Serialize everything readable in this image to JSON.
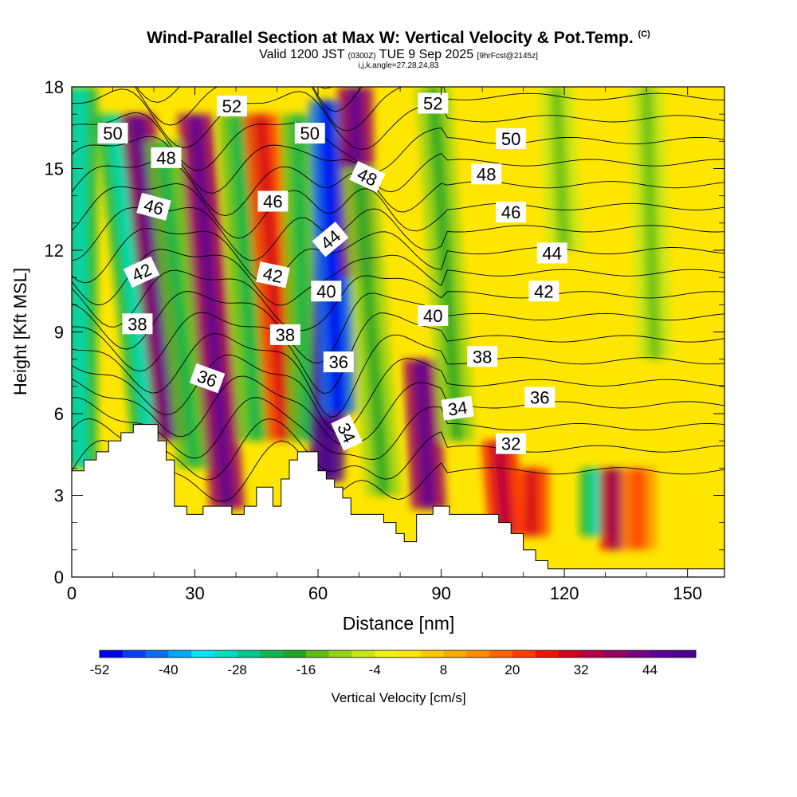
{
  "chart_data": {
    "type": "heatmap",
    "title": "Wind-Parallel Section at Max W: Vertical Velocity & Pot.Temp.",
    "title_tag": "(C)",
    "subtitle_valid": "Valid 1200 JST",
    "subtitle_utc": "(0300Z)",
    "subtitle_date": "TUE 9 Sep 2025",
    "subtitle_fcst": "[9hrFcst@2145z]",
    "subtitle2": "i,j,k,angle=27,28,24,83",
    "xlabel": "Distance [nm]",
    "ylabel": "Height [Kft MSL]",
    "xlim": [
      0,
      159
    ],
    "ylim": [
      0,
      18
    ],
    "x_ticks": [
      "0",
      "30",
      "60",
      "90",
      "120",
      "150"
    ],
    "x_tick_values": [
      0,
      30,
      60,
      90,
      120,
      150
    ],
    "y_ticks": [
      "0",
      "3",
      "6",
      "9",
      "12",
      "15",
      "18"
    ],
    "y_tick_values": [
      0,
      3,
      6,
      9,
      12,
      15,
      18
    ],
    "colorbar": {
      "label": "Vertical Velocity [cm/s]",
      "min": -52,
      "max": 52,
      "step": 4,
      "tick_labels": [
        "-52",
        "-40",
        "-28",
        "-16",
        "-4",
        "8",
        "20",
        "32",
        "44"
      ],
      "tick_values": [
        -52,
        -40,
        -28,
        -16,
        -4,
        8,
        20,
        32,
        44
      ],
      "colors": [
        "#0000f0",
        "#0a3ef5",
        "#0a6ef5",
        "#00a8f5",
        "#00e4f5",
        "#00dcc0",
        "#00c88c",
        "#10b450",
        "#20a428",
        "#60be14",
        "#96d214",
        "#c8e614",
        "#f0f014",
        "#ffe600",
        "#ffc800",
        "#ffaa00",
        "#ff8c00",
        "#ff6400",
        "#ff3c00",
        "#f01400",
        "#d2001e",
        "#b40046",
        "#960064",
        "#780082",
        "#5a0096",
        "#4b0091"
      ]
    },
    "vertical_velocity_field": {
      "background": 2,
      "bands": [
        {
          "x_bottom": 2,
          "y_bottom": 4,
          "x_top": 2,
          "y_top": 18,
          "value": -22
        },
        {
          "x_bottom": 19,
          "y_bottom": 5,
          "x_top": 10,
          "y_top": 17,
          "value": -22
        },
        {
          "x_bottom": 25,
          "y_bottom": 5,
          "x_top": 16,
          "y_top": 17,
          "value": 38
        },
        {
          "x_bottom": 30,
          "y_bottom": 4,
          "x_top": 22,
          "y_top": 16,
          "value": -16
        },
        {
          "x_bottom": 38,
          "y_bottom": 2.5,
          "x_top": 30,
          "y_top": 17,
          "value": 36
        },
        {
          "x_bottom": 45,
          "y_bottom": 5,
          "x_top": 40,
          "y_top": 17,
          "value": -16
        },
        {
          "x_bottom": 52,
          "y_bottom": 5,
          "x_top": 46,
          "y_top": 17,
          "value": 20
        },
        {
          "x_bottom": 57,
          "y_bottom": 5,
          "x_top": 55,
          "y_top": 17,
          "value": -16
        },
        {
          "x_bottom": 62,
          "y_bottom": 3.5,
          "x_top": 64,
          "y_top": 16,
          "value": 50
        },
        {
          "x_bottom": 65,
          "y_bottom": 6,
          "x_top": 62,
          "y_top": 17.5,
          "value": -44
        },
        {
          "x_bottom": 70,
          "y_bottom": 11,
          "x_top": 69,
          "y_top": 18,
          "value": 36
        },
        {
          "x_bottom": 76,
          "y_bottom": 3,
          "x_top": 70,
          "y_top": 15,
          "value": -12
        },
        {
          "x_bottom": 87,
          "y_bottom": 2.5,
          "x_top": 85,
          "y_top": 8,
          "value": 36
        },
        {
          "x_bottom": 94,
          "y_bottom": 5,
          "x_top": 88,
          "y_top": 18,
          "value": -12
        },
        {
          "x_bottom": 106,
          "y_bottom": 1.5,
          "x_top": 104,
          "y_top": 5,
          "value": 24
        },
        {
          "x_bottom": 112,
          "y_bottom": 1.5,
          "x_top": 112,
          "y_top": 4,
          "value": 20
        },
        {
          "x_bottom": 128,
          "y_bottom": 1.5,
          "x_top": 128,
          "y_top": 4,
          "value": -22
        },
        {
          "x_bottom": 133,
          "y_bottom": 1,
          "x_top": 133,
          "y_top": 4,
          "value": 30
        },
        {
          "x_bottom": 138,
          "y_bottom": 1,
          "x_top": 138,
          "y_top": 4,
          "value": 14
        },
        {
          "x_bottom": 120,
          "y_bottom": 12,
          "x_top": 118,
          "y_top": 18,
          "value": -8
        },
        {
          "x_bottom": 142,
          "y_bottom": 8,
          "x_top": 140,
          "y_top": 18,
          "value": -6
        }
      ]
    },
    "terrain_profile": [
      {
        "x": 0,
        "y": 3.9
      },
      {
        "x": 3,
        "y": 4.3
      },
      {
        "x": 6,
        "y": 4.6
      },
      {
        "x": 9,
        "y": 5.0
      },
      {
        "x": 12,
        "y": 5.3
      },
      {
        "x": 15,
        "y": 5.6
      },
      {
        "x": 19,
        "y": 5.6
      },
      {
        "x": 21,
        "y": 5.0
      },
      {
        "x": 23,
        "y": 4.3
      },
      {
        "x": 25,
        "y": 2.6
      },
      {
        "x": 28,
        "y": 2.3
      },
      {
        "x": 32,
        "y": 2.6
      },
      {
        "x": 36,
        "y": 2.6
      },
      {
        "x": 39,
        "y": 2.3
      },
      {
        "x": 42,
        "y": 2.6
      },
      {
        "x": 45,
        "y": 3.3
      },
      {
        "x": 47,
        "y": 3.3
      },
      {
        "x": 49,
        "y": 2.6
      },
      {
        "x": 51,
        "y": 3.6
      },
      {
        "x": 53,
        "y": 4.3
      },
      {
        "x": 55,
        "y": 4.6
      },
      {
        "x": 58,
        "y": 4.6
      },
      {
        "x": 60,
        "y": 3.9
      },
      {
        "x": 62,
        "y": 3.6
      },
      {
        "x": 64,
        "y": 3.3
      },
      {
        "x": 66,
        "y": 2.9
      },
      {
        "x": 68,
        "y": 2.3
      },
      {
        "x": 70,
        "y": 2.3
      },
      {
        "x": 73,
        "y": 2.3
      },
      {
        "x": 76,
        "y": 2.0
      },
      {
        "x": 79,
        "y": 1.6
      },
      {
        "x": 81,
        "y": 1.3
      },
      {
        "x": 84,
        "y": 2.3
      },
      {
        "x": 88,
        "y": 2.6
      },
      {
        "x": 92,
        "y": 2.3
      },
      {
        "x": 96,
        "y": 2.3
      },
      {
        "x": 100,
        "y": 2.3
      },
      {
        "x": 104,
        "y": 2.0
      },
      {
        "x": 107,
        "y": 1.6
      },
      {
        "x": 110,
        "y": 1.0
      },
      {
        "x": 113,
        "y": 0.6
      },
      {
        "x": 116,
        "y": 0.3
      },
      {
        "x": 130,
        "y": 0.3
      },
      {
        "x": 159,
        "y": 0.3
      }
    ],
    "theta_contours": {
      "interval_k": 1,
      "label_interval_k": 2,
      "levels_range": [
        32,
        52
      ],
      "labels": [
        {
          "text": "50",
          "x": 10,
          "y": 16.3,
          "angle": 0
        },
        {
          "text": "48",
          "x": 23,
          "y": 15.4,
          "angle": 0
        },
        {
          "text": "46",
          "x": 20,
          "y": 13.6,
          "angle": -15
        },
        {
          "text": "42",
          "x": 17,
          "y": 11.2,
          "angle": 25
        },
        {
          "text": "38",
          "x": 16,
          "y": 9.3,
          "angle": 0
        },
        {
          "text": "36",
          "x": 33,
          "y": 7.3,
          "angle": -20
        },
        {
          "text": "52",
          "x": 39,
          "y": 17.3,
          "angle": 0
        },
        {
          "text": "46",
          "x": 49,
          "y": 13.8,
          "angle": 0
        },
        {
          "text": "42",
          "x": 49,
          "y": 11.1,
          "angle": -12
        },
        {
          "text": "38",
          "x": 52,
          "y": 8.9,
          "angle": 0
        },
        {
          "text": "50",
          "x": 58,
          "y": 16.3,
          "angle": 0
        },
        {
          "text": "40",
          "x": 62,
          "y": 10.5,
          "angle": 0
        },
        {
          "text": "36",
          "x": 65,
          "y": 7.9,
          "angle": 0
        },
        {
          "text": "34",
          "x": 67,
          "y": 5.3,
          "angle": -65
        },
        {
          "text": "44",
          "x": 63,
          "y": 12.4,
          "angle": 40
        },
        {
          "text": "48",
          "x": 72,
          "y": 14.7,
          "angle": -25
        },
        {
          "text": "52",
          "x": 88,
          "y": 17.4,
          "angle": 0
        },
        {
          "text": "40",
          "x": 88,
          "y": 9.6,
          "angle": 0
        },
        {
          "text": "34",
          "x": 94,
          "y": 6.2,
          "angle": 8
        },
        {
          "text": "50",
          "x": 107,
          "y": 16.1,
          "angle": 0
        },
        {
          "text": "48",
          "x": 101,
          "y": 14.8,
          "angle": 0
        },
        {
          "text": "46",
          "x": 107,
          "y": 13.4,
          "angle": 0
        },
        {
          "text": "38",
          "x": 100,
          "y": 8.1,
          "angle": 0
        },
        {
          "text": "32",
          "x": 107,
          "y": 4.9,
          "angle": 0
        },
        {
          "text": "44",
          "x": 117,
          "y": 11.9,
          "angle": 0
        },
        {
          "text": "42",
          "x": 115,
          "y": 10.5,
          "angle": 0
        },
        {
          "text": "36",
          "x": 114,
          "y": 6.6,
          "angle": 0
        }
      ]
    }
  }
}
